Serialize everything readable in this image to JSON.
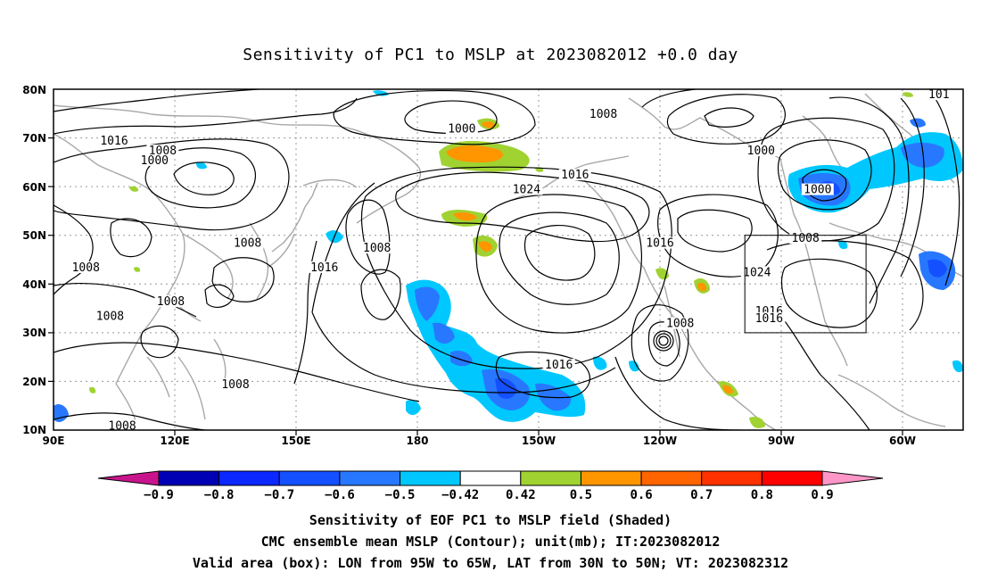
{
  "title": "Sensitivity of PC1 to MSLP at 2023082012 +0.0 day",
  "map": {
    "lat_labels": [
      "80N",
      "70N",
      "60N",
      "50N",
      "40N",
      "30N",
      "20N",
      "10N"
    ],
    "lon_labels": [
      "90E",
      "120E",
      "150E",
      "180",
      "150W",
      "120W",
      "90W",
      "60W"
    ],
    "valid_box": {
      "lon_range": [
        "95W",
        "65W"
      ],
      "lat_range": [
        "30N",
        "50N"
      ]
    },
    "contour_labels": [
      {
        "text": "1016",
        "lonlat": [
          105,
          69
        ]
      },
      {
        "text": "1008",
        "lonlat": [
          117,
          67
        ]
      },
      {
        "text": "1000",
        "lonlat": [
          115,
          65
        ]
      },
      {
        "text": "1000",
        "lonlat": [
          191,
          71.5
        ]
      },
      {
        "text": "1008",
        "lonlat": [
          226,
          74.5
        ]
      },
      {
        "text": "1016",
        "lonlat": [
          219,
          62
        ]
      },
      {
        "text": "1024",
        "lonlat": [
          207,
          59
        ]
      },
      {
        "text": "1000",
        "lonlat": [
          265,
          67
        ]
      },
      {
        "text": "1000",
        "lonlat": [
          279,
          59
        ]
      },
      {
        "text": "1008",
        "lonlat": [
          138,
          48
        ]
      },
      {
        "text": "1016",
        "lonlat": [
          157,
          43
        ]
      },
      {
        "text": "1008",
        "lonlat": [
          170,
          47
        ]
      },
      {
        "text": "1008",
        "lonlat": [
          98,
          43
        ]
      },
      {
        "text": "1008",
        "lonlat": [
          119,
          36
        ]
      },
      {
        "text": "1008",
        "lonlat": [
          104,
          33
        ]
      },
      {
        "text": "1016",
        "lonlat": [
          240,
          48
        ]
      },
      {
        "text": "1024",
        "lonlat": [
          264,
          42
        ]
      },
      {
        "text": "1008",
        "lonlat": [
          276,
          49
        ]
      },
      {
        "text": "1016",
        "lonlat": [
          267,
          34
        ]
      },
      {
        "text": "1016",
        "lonlat": [
          267,
          32.5
        ]
      },
      {
        "text": "1008",
        "lonlat": [
          245,
          31.5
        ]
      },
      {
        "text": "1016",
        "lonlat": [
          215,
          23
        ]
      },
      {
        "text": "1008",
        "lonlat": [
          135,
          19
        ]
      },
      {
        "text": "1008",
        "lonlat": [
          107,
          10.5
        ]
      },
      {
        "text": "101",
        "lonlat": [
          309,
          78.5
        ]
      }
    ]
  },
  "colorbar": {
    "labels": [
      "-0.9",
      "-0.8",
      "-0.7",
      "-0.6",
      "-0.5",
      "-0.42",
      "0.42",
      "0.5",
      "0.6",
      "0.7",
      "0.8",
      "0.9"
    ],
    "colors": [
      "#0000b4",
      "#0a28ff",
      "#1450ff",
      "#2878ff",
      "#00c8ff",
      "#ffffff",
      "#a0d232",
      "#ff9600",
      "#ff6400",
      "#ff3200",
      "#ff0000"
    ],
    "low_cap_color": "#c8148c",
    "high_cap_color": "#ff96c8"
  },
  "captions": {
    "line1": "Sensitivity of EOF PC1 to MSLP field (Shaded)",
    "line2": "CMC ensemble mean MSLP (Contour); unit(mb); IT:2023082012",
    "line3": "Valid area (box): LON from 95W to 65W, LAT from 30N to 50N; VT: 2023082312"
  }
}
